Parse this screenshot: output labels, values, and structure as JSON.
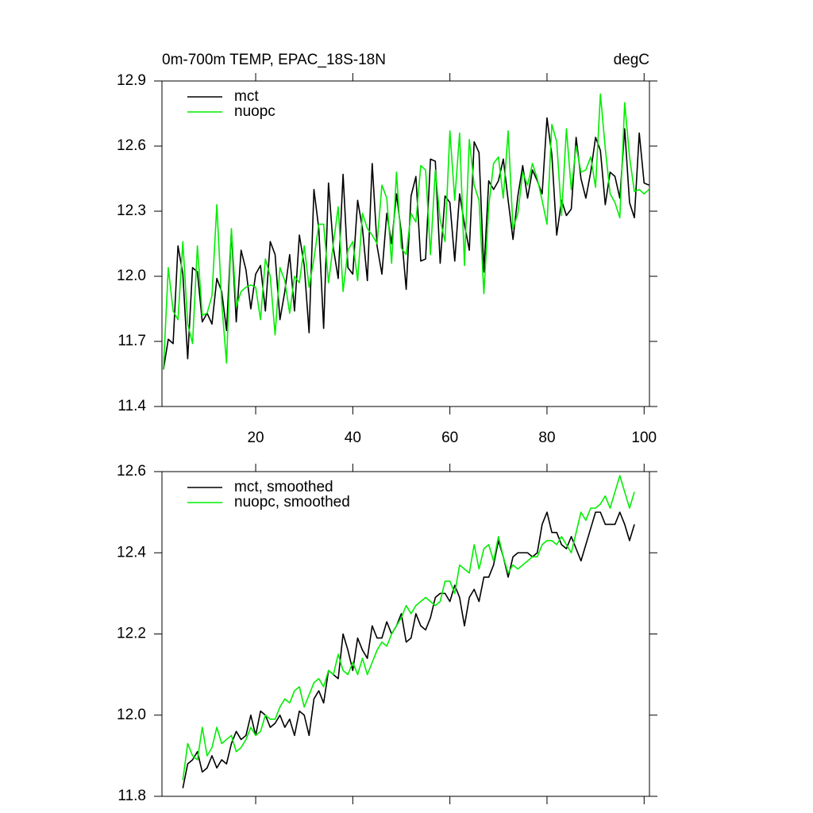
{
  "chart_data": [
    {
      "type": "line",
      "title": "0m-700m TEMP, EPAC_18S-18N",
      "units": "degC",
      "x": [
        1,
        2,
        3,
        4,
        5,
        6,
        7,
        8,
        9,
        10,
        11,
        12,
        13,
        14,
        15,
        16,
        17,
        18,
        19,
        20,
        21,
        22,
        23,
        24,
        25,
        26,
        27,
        28,
        29,
        30,
        31,
        32,
        33,
        34,
        35,
        36,
        37,
        38,
        39,
        40,
        41,
        42,
        43,
        44,
        45,
        46,
        47,
        48,
        49,
        50,
        51,
        52,
        53,
        54,
        55,
        56,
        57,
        58,
        59,
        60,
        61,
        62,
        63,
        64,
        65,
        66,
        67,
        68,
        69,
        70,
        71,
        72,
        73,
        74,
        75,
        76,
        77,
        78,
        79,
        80,
        81,
        82,
        83,
        84,
        85,
        86,
        87,
        88,
        89,
        90,
        91,
        92,
        93,
        94,
        95,
        96,
        97,
        98,
        99,
        100,
        101
      ],
      "series": [
        {
          "name": "mct",
          "color": "#000000",
          "values": [
            11.57,
            11.71,
            11.69,
            12.14,
            12.01,
            11.62,
            12.04,
            12.02,
            11.79,
            11.83,
            11.78,
            11.99,
            11.93,
            11.75,
            12.21,
            11.79,
            12.12,
            12.03,
            11.85,
            12.01,
            12.05,
            11.84,
            12.16,
            12.1,
            11.8,
            11.93,
            12.1,
            11.84,
            12.19,
            12.05,
            11.74,
            12.4,
            12.22,
            11.76,
            12.43,
            12.13,
            11.99,
            12.47,
            12.04,
            12.01,
            12.35,
            12.22,
            11.98,
            12.52,
            12.14,
            12.01,
            12.29,
            12.15,
            12.38,
            12.2,
            11.94,
            12.37,
            12.46,
            12.07,
            12.08,
            12.54,
            12.53,
            12.06,
            12.37,
            12.34,
            12.07,
            12.38,
            12.24,
            12.12,
            12.62,
            12.57,
            12.02,
            12.44,
            12.4,
            12.44,
            12.54,
            12.35,
            12.17,
            12.37,
            12.51,
            12.36,
            12.49,
            12.44,
            12.38,
            12.73,
            12.56,
            12.19,
            12.35,
            12.28,
            12.31,
            12.64,
            12.45,
            12.36,
            12.48,
            12.64,
            12.58,
            12.33,
            12.48,
            12.46,
            12.36,
            12.68,
            12.34,
            12.27,
            12.66,
            12.43,
            12.42
          ]
        },
        {
          "name": "nuopc",
          "color": "#00ee00",
          "values": [
            11.57,
            12.04,
            11.84,
            11.8,
            12.16,
            11.78,
            11.69,
            12.14,
            11.82,
            11.83,
            11.91,
            12.33,
            11.88,
            11.6,
            12.22,
            11.86,
            11.93,
            11.95,
            11.96,
            11.95,
            11.8,
            12.08,
            12.0,
            11.73,
            12.04,
            11.98,
            11.83,
            12.0,
            11.97,
            12.14,
            11.95,
            12.08,
            12.24,
            12.24,
            11.97,
            12.15,
            12.32,
            11.93,
            12.12,
            12.16,
            11.98,
            12.29,
            12.22,
            12.19,
            12.15,
            12.42,
            12.36,
            12.06,
            12.48,
            12.13,
            12.1,
            12.29,
            12.25,
            12.51,
            12.49,
            12.1,
            12.49,
            12.26,
            12.16,
            12.67,
            12.35,
            12.66,
            12.05,
            12.63,
            12.42,
            12.35,
            11.92,
            12.32,
            12.52,
            12.55,
            12.36,
            12.67,
            12.22,
            12.29,
            12.48,
            12.42,
            12.52,
            12.45,
            12.35,
            12.24,
            12.7,
            12.62,
            12.28,
            12.68,
            12.4,
            12.6,
            12.48,
            12.49,
            12.55,
            12.41,
            12.84,
            12.59,
            12.38,
            12.34,
            12.27,
            12.8,
            12.55,
            12.39,
            12.4,
            12.38,
            12.4
          ]
        }
      ],
      "xlim": [
        0.7,
        101.1
      ],
      "xticks": [
        20,
        40,
        60,
        80,
        100
      ],
      "ylim": [
        11.4,
        12.9
      ],
      "yticks": [
        11.4,
        11.7,
        {
          "value": 12,
          "label": "12.0"
        },
        12.3,
        12.6,
        12.9
      ]
    },
    {
      "type": "line",
      "x": [
        5,
        6,
        7,
        8,
        9,
        10,
        11,
        12,
        13,
        14,
        15,
        16,
        17,
        18,
        19,
        20,
        21,
        22,
        23,
        24,
        25,
        26,
        27,
        28,
        29,
        30,
        31,
        32,
        33,
        34,
        35,
        36,
        37,
        38,
        39,
        40,
        41,
        42,
        43,
        44,
        45,
        46,
        47,
        48,
        49,
        50,
        51,
        52,
        53,
        54,
        55,
        56,
        57,
        58,
        59,
        60,
        61,
        62,
        63,
        64,
        65,
        66,
        67,
        68,
        69,
        70,
        71,
        72,
        73,
        74,
        75,
        76,
        77,
        78,
        79,
        80,
        81,
        82,
        83,
        84,
        85,
        86,
        87,
        88,
        89,
        90,
        91,
        92,
        93,
        94,
        95,
        96,
        97,
        98
      ],
      "series": [
        {
          "name": "mct, smoothed",
          "color": "#000000",
          "values": [
            11.82,
            11.88,
            11.89,
            11.91,
            11.86,
            11.87,
            11.9,
            11.87,
            11.89,
            11.88,
            11.93,
            11.96,
            11.94,
            11.95,
            12.0,
            11.95,
            12.01,
            12.0,
            11.97,
            11.98,
            12.0,
            11.97,
            11.99,
            11.95,
            12.01,
            12.0,
            11.95,
            12.04,
            12.06,
            12.03,
            12.11,
            12.1,
            12.09,
            12.2,
            12.16,
            12.11,
            12.19,
            12.16,
            12.14,
            12.22,
            12.19,
            12.19,
            12.23,
            12.2,
            12.22,
            12.25,
            12.18,
            12.19,
            12.25,
            12.22,
            12.21,
            12.24,
            12.29,
            12.3,
            12.3,
            12.28,
            12.32,
            12.29,
            12.22,
            12.29,
            12.31,
            12.28,
            12.34,
            12.34,
            12.37,
            12.43,
            12.39,
            12.34,
            12.39,
            12.4,
            12.4,
            12.4,
            12.39,
            12.4,
            12.47,
            12.5,
            12.45,
            12.45,
            12.42,
            12.41,
            12.44,
            12.41,
            12.38,
            12.42,
            12.46,
            12.5,
            12.5,
            12.47,
            12.47,
            12.47,
            12.5,
            12.47,
            12.43,
            12.47
          ]
        },
        {
          "name": "nuopc, smoothed",
          "color": "#00ee00",
          "values": [
            11.84,
            11.93,
            11.9,
            11.89,
            11.97,
            11.9,
            11.92,
            11.97,
            11.93,
            11.94,
            11.95,
            11.91,
            11.92,
            11.94,
            11.97,
            11.95,
            11.96,
            12.0,
            11.99,
            11.99,
            12.02,
            12.04,
            12.03,
            12.06,
            12.07,
            12.02,
            12.05,
            12.08,
            12.09,
            12.07,
            12.11,
            12.1,
            12.15,
            12.11,
            12.1,
            12.13,
            12.1,
            12.14,
            12.1,
            12.13,
            12.16,
            12.18,
            12.17,
            12.2,
            12.22,
            12.24,
            12.27,
            12.25,
            12.27,
            12.28,
            12.29,
            12.28,
            12.27,
            12.28,
            12.33,
            12.33,
            12.3,
            12.37,
            12.36,
            12.35,
            12.42,
            12.36,
            12.41,
            12.42,
            12.38,
            12.44,
            12.39,
            12.35,
            12.37,
            12.36,
            12.37,
            12.38,
            12.39,
            12.39,
            12.42,
            12.43,
            12.43,
            12.42,
            12.44,
            12.42,
            12.4,
            12.45,
            12.5,
            12.48,
            12.51,
            12.51,
            12.52,
            12.54,
            12.51,
            12.55,
            12.59,
            12.55,
            12.51,
            12.55
          ]
        }
      ],
      "xlim": [
        0.7,
        101.1
      ],
      "ylim": [
        11.8,
        12.6
      ],
      "yticks": [
        11.8,
        {
          "value": 12,
          "label": "12.0"
        },
        12.2,
        12.4,
        12.6
      ]
    }
  ]
}
